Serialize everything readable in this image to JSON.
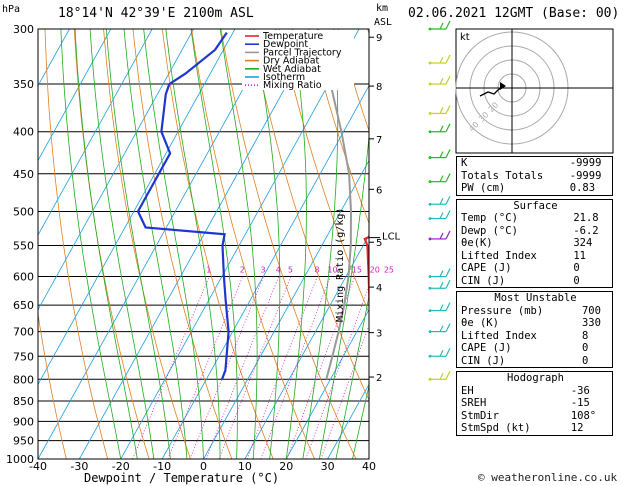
{
  "header": {
    "pressure_unit": "hPa",
    "location": "18°14'N  42°39'E  2100m  ASL",
    "height_unit": "km",
    "height_unit2": "ASL",
    "date": "02.06.2021  12GMT  (Base: 00)"
  },
  "chart_data": {
    "type": "line",
    "title": "",
    "xlabel": "Dewpoint / Temperature (°C)",
    "ylabel": "hPa",
    "mixing_ratio_label": "Mixing Ratio (g/kg)",
    "xlim": [
      -40,
      40
    ],
    "ylim": [
      1000,
      300
    ],
    "x_ticks": [
      -40,
      -30,
      -20,
      -10,
      0,
      10,
      20,
      30,
      40
    ],
    "pressure_levels": [
      300,
      350,
      400,
      450,
      500,
      550,
      600,
      650,
      700,
      750,
      800,
      850,
      900,
      950,
      1000
    ],
    "mixing_ratio_values": [
      "1",
      "2",
      "3",
      "4",
      "5",
      "8",
      "10",
      "15",
      "20",
      "25"
    ],
    "lcl_label": "LCL",
    "lcl_pressure": 538,
    "km_ticks": [
      {
        "km": "9",
        "p": 307
      },
      {
        "km": "8",
        "p": 352
      },
      {
        "km": "7",
        "p": 408
      },
      {
        "km": "6",
        "p": 470
      },
      {
        "km": "5",
        "p": 545
      },
      {
        "km": "4",
        "p": 618
      },
      {
        "km": "3",
        "p": 702
      },
      {
        "km": "2",
        "p": 795
      }
    ],
    "legend_position": "top-left",
    "series": [
      {
        "name": "Temperature",
        "color": "#e8252a",
        "points": [
          [
            785,
            32.0
          ],
          [
            770,
            29.6
          ],
          [
            740,
            27.2
          ],
          [
            700,
            23.5
          ],
          [
            650,
            19.5
          ],
          [
            600,
            15.5
          ],
          [
            550,
            11.0
          ],
          [
            540,
            9.5
          ],
          [
            525,
            13.5
          ],
          [
            505,
            12.5
          ],
          [
            470,
            9.0
          ],
          [
            425,
            4.5
          ],
          [
            400,
            2.5
          ],
          [
            355,
            -5.0
          ]
        ]
      },
      {
        "name": "Dewpoint",
        "color": "#1f35d0",
        "points": [
          [
            800,
            -6.2
          ],
          [
            780,
            -6.6
          ],
          [
            700,
            -11.0
          ],
          [
            640,
            -16.0
          ],
          [
            600,
            -19.5
          ],
          [
            550,
            -24.0
          ],
          [
            533,
            -25.0
          ],
          [
            523,
            -45.0
          ],
          [
            500,
            -49.0
          ],
          [
            480,
            -49.0
          ],
          [
            425,
            -49.0
          ],
          [
            400,
            -54.0
          ],
          [
            360,
            -58.0
          ],
          [
            350,
            -58.5
          ],
          [
            340,
            -56.0
          ],
          [
            318,
            -52.0
          ],
          [
            303,
            -51.5
          ]
        ]
      },
      {
        "name": "Parcel Trajectory",
        "color": "#999999",
        "points": [
          [
            800,
            19.0
          ],
          [
            750,
            17.4
          ],
          [
            700,
            15.6
          ],
          [
            650,
            13.4
          ],
          [
            600,
            10.6
          ],
          [
            550,
            7.0
          ],
          [
            500,
            2.5
          ],
          [
            450,
            -3.0
          ],
          [
            400,
            -10.5
          ],
          [
            350,
            -19.5
          ],
          [
            300,
            -30.0
          ]
        ]
      },
      {
        "name": "Dry Adiabat",
        "color": "#e08020"
      },
      {
        "name": "Wet Adiabat",
        "color": "#22aa22"
      },
      {
        "name": "Isotherm",
        "color": "#1e9fe0"
      },
      {
        "name": "Mixing Ratio",
        "color": "#d020c0"
      }
    ],
    "wind_barbs": [
      {
        "p": 300,
        "color": "#22bb22"
      },
      {
        "p": 330,
        "color": "#c8d020"
      },
      {
        "p": 350,
        "color": "#c8d020"
      },
      {
        "p": 380,
        "color": "#c8d020"
      },
      {
        "p": 400,
        "color": "#22bb22"
      },
      {
        "p": 430,
        "color": "#22bb22"
      },
      {
        "p": 460,
        "color": "#22bb22"
      },
      {
        "p": 490,
        "color": "#22bbbb"
      },
      {
        "p": 510,
        "color": "#22bbbb"
      },
      {
        "p": 540,
        "color": "#9a20c8"
      },
      {
        "p": 600,
        "color": "#22bbbb"
      },
      {
        "p": 620,
        "color": "#22bbbb"
      },
      {
        "p": 660,
        "color": "#22bbbb"
      },
      {
        "p": 700,
        "color": "#22bbbb"
      },
      {
        "p": 750,
        "color": "#22bbbb"
      },
      {
        "p": 800,
        "color": "#c8d020"
      }
    ]
  },
  "hodograph": {
    "unit": "kt",
    "ring_labels": [
      "20",
      "30",
      "40"
    ],
    "colors": {
      "path": "#000000",
      "rings": "#aaaaaa"
    }
  },
  "indices": {
    "top": [
      {
        "label": "K",
        "value": "-9999"
      },
      {
        "label": "Totals Totals",
        "value": "-9999"
      },
      {
        "label": "PW (cm)",
        "value": "0.83"
      }
    ],
    "surface": {
      "title": "Surface",
      "rows": [
        {
          "label": "Temp (°C)",
          "value": "21.8"
        },
        {
          "label": "Dewp (°C)",
          "value": "-6.2"
        },
        {
          "label": "θe(K)",
          "value": "324"
        },
        {
          "label": "Lifted Index",
          "value": "11"
        },
        {
          "label": "CAPE (J)",
          "value": "0"
        },
        {
          "label": "CIN (J)",
          "value": "0"
        }
      ]
    },
    "most_unstable": {
      "title": "Most Unstable",
      "rows": [
        {
          "label": "Pressure (mb)",
          "value": "700"
        },
        {
          "label": "θe (K)",
          "value": "330"
        },
        {
          "label": "Lifted Index",
          "value": "8"
        },
        {
          "label": "CAPE (J)",
          "value": "0"
        },
        {
          "label": "CIN (J)",
          "value": "0"
        }
      ]
    },
    "hodograph": {
      "title": "Hodograph",
      "rows": [
        {
          "label": "EH",
          "value": "-36"
        },
        {
          "label": "SREH",
          "value": "-15"
        },
        {
          "label": "StmDir",
          "value": "108°"
        },
        {
          "label": "StmSpd (kt)",
          "value": "12"
        }
      ]
    }
  },
  "footer": {
    "copyright": "© weatheronline.co.uk"
  }
}
